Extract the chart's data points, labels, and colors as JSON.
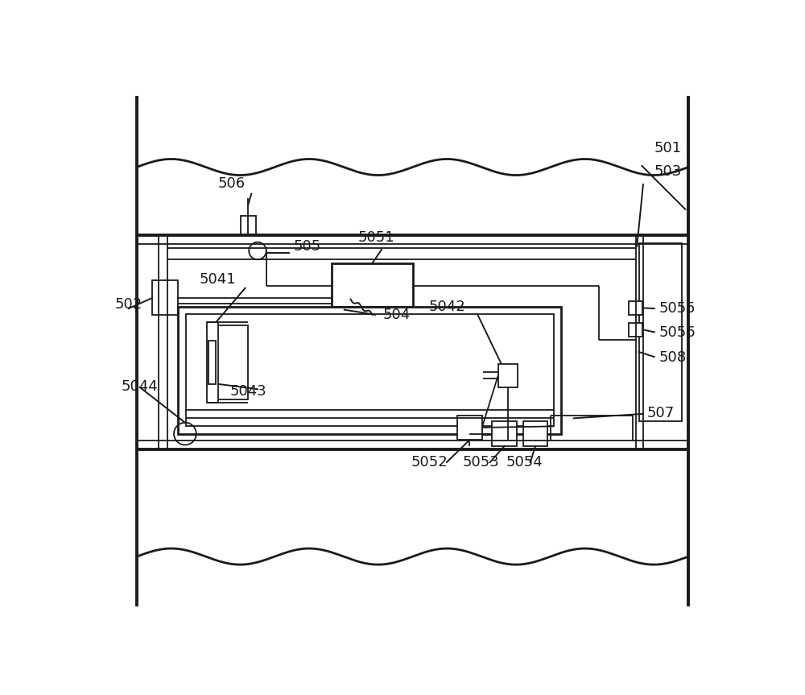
{
  "bg_color": "#ffffff",
  "line_color": "#1a1a1a",
  "fig_width": 10.0,
  "fig_height": 8.63,
  "lw_main": 2.0,
  "lw_thin": 1.3,
  "lw_thick": 2.8,
  "label_fontsize": 13
}
